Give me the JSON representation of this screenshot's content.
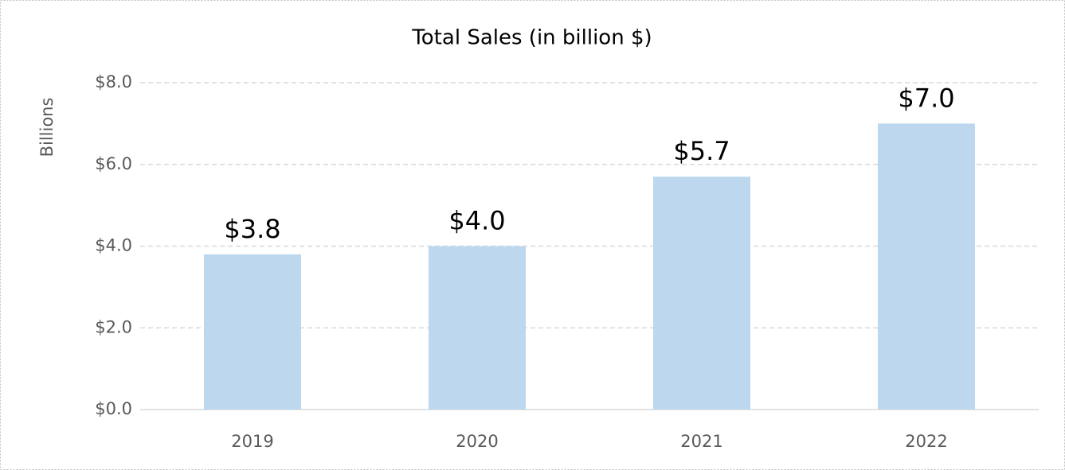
{
  "chart_data": {
    "type": "bar",
    "title": "Total Sales (in billion $)",
    "y_label": "Billions",
    "categories": [
      "2019",
      "2020",
      "2021",
      "2022"
    ],
    "values": [
      3.8,
      4.0,
      5.7,
      7.0
    ],
    "value_labels": [
      "$3.8",
      "$4.0",
      "$5.7",
      "$7.0"
    ],
    "color": "#bdd7ee",
    "ylim": [
      0,
      8
    ],
    "yticks": [
      {
        "value": 0,
        "label": "$0.0"
      },
      {
        "value": 2,
        "label": "$2.0"
      },
      {
        "value": 4,
        "label": "$4.0"
      },
      {
        "value": 6,
        "label": "$6.0"
      },
      {
        "value": 8,
        "label": "$8.0"
      }
    ],
    "grid": true
  }
}
